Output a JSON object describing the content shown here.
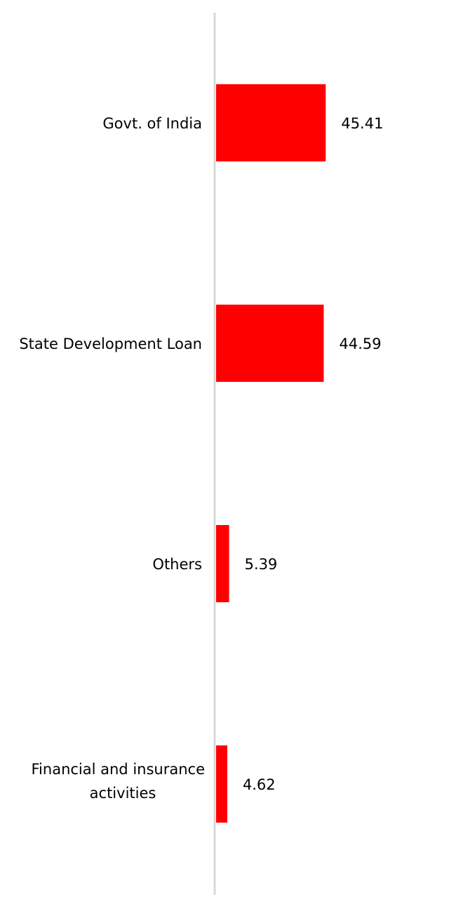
{
  "chart_data": {
    "type": "bar",
    "orientation": "horizontal",
    "categories": [
      [
        "Govt. of India"
      ],
      [
        "State Development Loan"
      ],
      [
        "Others"
      ],
      [
        "Financial and insurance",
        "activities"
      ]
    ],
    "values": [
      45.41,
      44.59,
      5.39,
      4.62
    ],
    "value_labels": [
      "45.41",
      "44.59",
      "5.39",
      "4.62"
    ],
    "title": "",
    "xlabel": "",
    "ylabel": "",
    "xlim": [
      0,
      100
    ],
    "grid": false,
    "legend": "none",
    "bar_color": "#ff0000",
    "axis_color": "#d9d9d9"
  }
}
